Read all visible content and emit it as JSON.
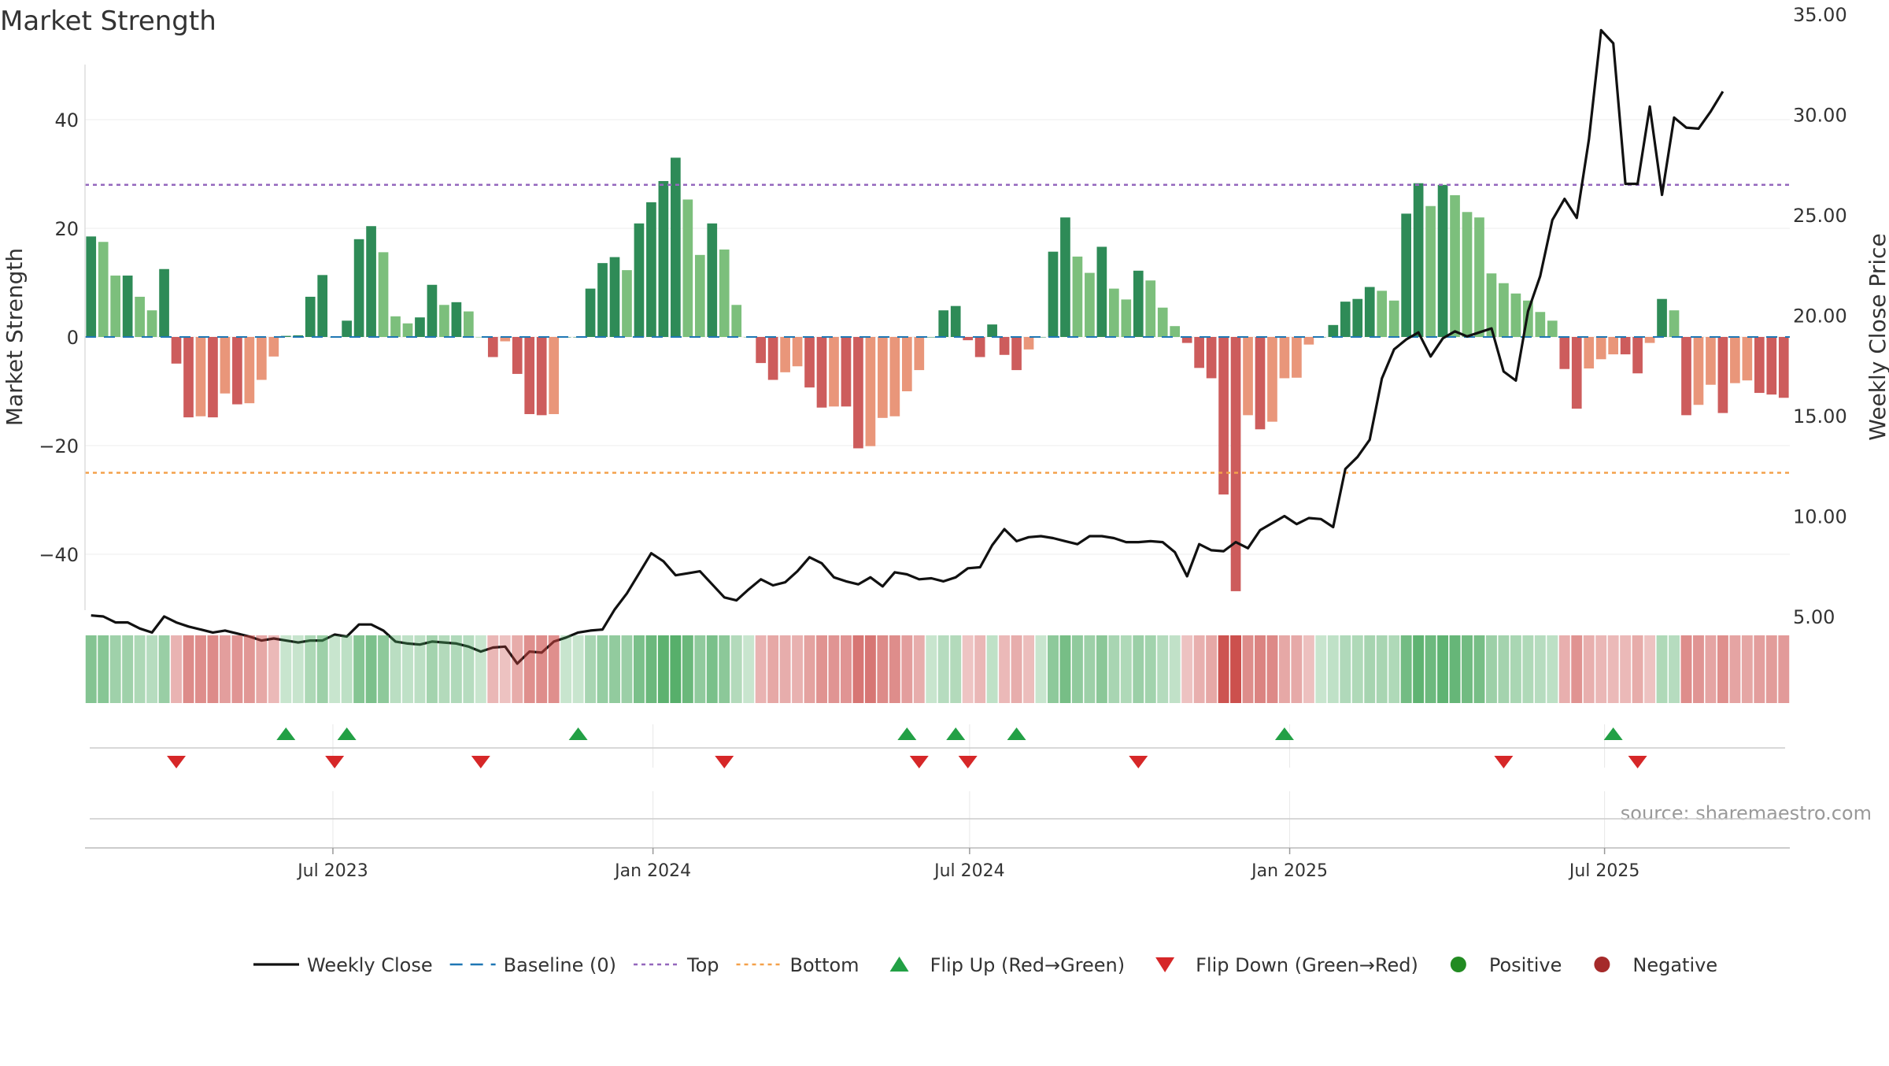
{
  "chart_data": {
    "type": "bar",
    "title": "Market Strength",
    "ylabel": "Market Strength",
    "y2label": "Weekly Close Price",
    "ylim": [
      -50,
      50
    ],
    "y2lim": [
      1.0,
      35.0
    ],
    "yticks": [
      -40,
      -20,
      0,
      20,
      40
    ],
    "yticklabels": [
      "−40",
      "−20",
      "0",
      "20",
      "40"
    ],
    "y2ticks": [
      5,
      10,
      15,
      20,
      25,
      30,
      35
    ],
    "y2ticklabels": [
      "5.00",
      "10.00",
      "15.00",
      "20.00",
      "25.00",
      "30.00",
      "35.00"
    ],
    "xticklabels": [
      "Jul 2023",
      "Jan 2024",
      "Jul 2024",
      "Jan 2025",
      "Jul 2025"
    ],
    "grid": true,
    "legend_position": "bottom",
    "top_line": 28,
    "bottom_line": -25,
    "baseline": 0,
    "source": "source: sharemaestro.com",
    "colors": {
      "positive_dark": "#2e8b57",
      "positive_light": "#7cbf7c",
      "negative_dark": "#cd5c5c",
      "negative_light": "#e9967a",
      "line": "#111111",
      "baseline": "#1f77b4",
      "top": "#9467bd",
      "bottom": "#f4a14b",
      "flip_up": "#22a045",
      "flip_down": "#d62728"
    },
    "series": [
      {
        "name": "Market Strength",
        "values": [
          18.5,
          17.5,
          11.3,
          11.3,
          7.4,
          4.9,
          12.5,
          -4.9,
          -14.8,
          -14.6,
          -14.8,
          -10.4,
          -12.4,
          -12.2,
          -7.9,
          -3.6,
          0.2,
          0.3,
          7.4,
          11.4,
          0.0,
          3.0,
          18.0,
          20.4,
          15.6,
          3.8,
          2.5,
          3.6,
          9.6,
          5.9,
          6.4,
          4.7,
          0.0,
          -3.7,
          -0.8,
          -6.8,
          -14.2,
          -14.4,
          -14.2,
          0.0,
          0.0,
          8.9,
          13.6,
          14.7,
          12.3,
          20.9,
          24.8,
          28.7,
          33.0,
          25.3,
          15.1,
          20.9,
          16.1,
          5.9,
          0.0,
          -4.8,
          -7.9,
          -6.5,
          -5.4,
          -9.3,
          -13.0,
          -12.8,
          -12.8,
          -20.5,
          -20.1,
          -14.9,
          -14.6,
          -10.0,
          -6.1,
          0.0,
          4.9,
          5.7,
          -0.6,
          -3.7,
          2.3,
          -3.3,
          -6.1,
          -2.3,
          0.0,
          15.7,
          22.0,
          14.8,
          11.8,
          16.6,
          8.9,
          6.9,
          12.2,
          10.4,
          5.4,
          2.0,
          -1.1,
          -5.7,
          -7.6,
          -29.0,
          -46.8,
          -14.4,
          -17.0,
          -15.6,
          -7.6,
          -7.5,
          -1.4,
          0.0,
          2.2,
          6.5,
          7.0,
          9.2,
          8.5,
          6.7,
          22.7,
          28.3,
          24.1,
          28.0,
          26.1,
          23.0,
          22.0,
          11.7,
          9.9,
          8.0,
          6.7,
          4.6,
          3.0,
          -5.9,
          -13.2,
          -5.8,
          -4.1,
          -3.2,
          -3.2,
          -6.7,
          -1.1,
          7.0,
          4.9,
          -14.4,
          -12.5,
          -8.8,
          -14.0,
          -8.5,
          -8.0,
          -10.3,
          -10.6,
          -11.2
        ]
      },
      {
        "name": "Weekly Close",
        "values": [
          5.05,
          5.0,
          4.7,
          4.7,
          4.4,
          4.2,
          5.0,
          4.7,
          4.5,
          4.35,
          4.2,
          4.3,
          4.15,
          4.0,
          3.8,
          3.9,
          3.8,
          3.7,
          3.8,
          3.8,
          4.1,
          4.0,
          4.6,
          4.6,
          4.3,
          3.75,
          3.65,
          3.6,
          3.75,
          3.7,
          3.65,
          3.5,
          3.25,
          3.45,
          3.5,
          2.65,
          3.25,
          3.2,
          3.75,
          3.95,
          4.2,
          4.3,
          4.35,
          5.35,
          6.15,
          7.15,
          8.15,
          7.75,
          7.05,
          7.15,
          7.25,
          6.6,
          5.95,
          5.8,
          6.35,
          6.85,
          6.55,
          6.7,
          7.25,
          7.95,
          7.65,
          6.95,
          6.75,
          6.6,
          6.95,
          6.5,
          7.2,
          7.1,
          6.85,
          6.9,
          6.75,
          6.95,
          7.4,
          7.45,
          8.55,
          9.35,
          8.75,
          8.95,
          9.0,
          8.9,
          8.75,
          8.6,
          9.0,
          9.0,
          8.9,
          8.7,
          8.7,
          8.75,
          8.7,
          8.2,
          7.0,
          8.6,
          8.3,
          8.25,
          8.7,
          8.4,
          9.3,
          9.65,
          10.0,
          9.6,
          9.9,
          9.85,
          9.45,
          12.35,
          12.95,
          13.8,
          16.85,
          18.3,
          18.8,
          19.15,
          17.95,
          18.85,
          19.2,
          18.95,
          19.15,
          19.35,
          17.2,
          16.75,
          20.2,
          21.95,
          24.75,
          25.8,
          24.85,
          28.75,
          34.2,
          33.55,
          26.55,
          26.55,
          30.4,
          26.0,
          29.85,
          29.35,
          29.3,
          30.15,
          31.15
        ]
      }
    ],
    "flip_up_indices": [
      16,
      21,
      40,
      67,
      71,
      76,
      98,
      125
    ],
    "flip_down_indices": [
      7,
      20,
      32,
      52,
      68,
      72,
      86,
      116,
      127
    ]
  },
  "legend": {
    "items": [
      {
        "label": "Weekly Close",
        "symbol": "line"
      },
      {
        "label": "Baseline (0)",
        "symbol": "dash"
      },
      {
        "label": "Top",
        "symbol": "dot-purple"
      },
      {
        "label": "Bottom",
        "symbol": "dot-orange"
      },
      {
        "label": "Flip Up (Red→Green)",
        "symbol": "tri-up"
      },
      {
        "label": "Flip Down (Green→Red)",
        "symbol": "tri-down"
      },
      {
        "label": "Positive",
        "symbol": "circle-green"
      },
      {
        "label": "Negative",
        "symbol": "circle-red"
      }
    ]
  }
}
